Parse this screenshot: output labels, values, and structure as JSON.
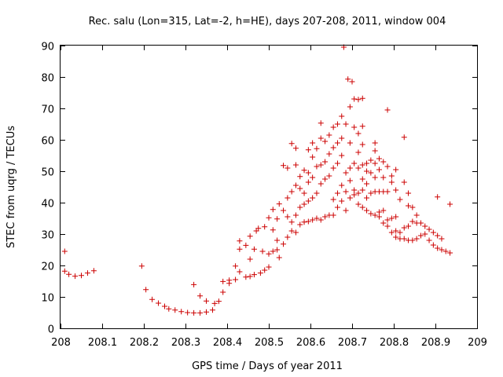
{
  "chart_data": {
    "type": "scatter",
    "title": "Rec. salu (Lon=315, Lat=-2, h=HE), days 207-208, 2011, window 004",
    "xlabel": "GPS time / Days of year 2011",
    "ylabel": "STEC from uqrg / TECUs",
    "xlim": [
      208,
      209
    ],
    "ylim": [
      0,
      90
    ],
    "xticks": [
      208,
      208.1,
      208.2,
      208.3,
      208.4,
      208.5,
      208.6,
      208.7,
      208.8,
      208.9,
      209
    ],
    "xtick_labels": [
      "208",
      "208.1",
      "208.2",
      "208.3",
      "208.4",
      "208.5",
      "208.6",
      "208.7",
      "208.8",
      "208.9",
      "209"
    ],
    "yticks": [
      0,
      10,
      20,
      30,
      40,
      50,
      60,
      70,
      80,
      90
    ],
    "ytick_labels": [
      "0",
      "10",
      "20",
      "30",
      "40",
      "50",
      "60",
      "70",
      "80",
      "90"
    ],
    "grid": false,
    "legend": "none",
    "marker": "plus",
    "color": "#cc0000",
    "series": [
      {
        "points": [
          [
            208.01,
            24.5
          ],
          [
            208.01,
            18.2
          ],
          [
            208.02,
            17.2
          ],
          [
            208.035,
            16.6
          ],
          [
            208.05,
            16.8
          ],
          [
            208.065,
            17.6
          ],
          [
            208.08,
            18.3
          ],
          [
            208.195,
            19.8
          ],
          [
            208.205,
            12.3
          ],
          [
            208.22,
            9.2
          ],
          [
            208.235,
            8.0
          ],
          [
            208.25,
            7.0
          ],
          [
            208.26,
            6.2
          ],
          [
            208.275,
            5.8
          ],
          [
            208.29,
            5.3
          ],
          [
            208.305,
            5.0
          ],
          [
            208.32,
            4.9
          ],
          [
            208.335,
            4.9
          ],
          [
            208.35,
            5.2
          ],
          [
            208.365,
            5.8
          ],
          [
            208.32,
            13.9
          ],
          [
            208.335,
            10.3
          ],
          [
            208.35,
            8.7
          ],
          [
            208.37,
            7.9
          ],
          [
            208.38,
            8.6
          ],
          [
            208.39,
            11.5
          ],
          [
            208.39,
            14.9
          ],
          [
            208.405,
            15.3
          ],
          [
            208.405,
            14.3
          ],
          [
            208.42,
            15.5
          ],
          [
            208.42,
            19.8
          ],
          [
            208.43,
            18.0
          ],
          [
            208.43,
            25.2
          ],
          [
            208.43,
            27.8
          ],
          [
            208.445,
            16.3
          ],
          [
            208.445,
            26.4
          ],
          [
            208.455,
            16.5
          ],
          [
            208.455,
            22.0
          ],
          [
            208.455,
            29.3
          ],
          [
            208.465,
            17.1
          ],
          [
            208.465,
            25.2
          ],
          [
            208.47,
            31.0
          ],
          [
            208.475,
            31.8
          ],
          [
            208.48,
            17.6
          ],
          [
            208.485,
            24.5
          ],
          [
            208.49,
            32.3
          ],
          [
            208.49,
            18.5
          ],
          [
            208.5,
            19.5
          ],
          [
            208.5,
            23.7
          ],
          [
            208.5,
            35.2
          ],
          [
            208.51,
            24.5
          ],
          [
            208.51,
            31.3
          ],
          [
            208.51,
            37.8
          ],
          [
            208.52,
            25.0
          ],
          [
            208.52,
            28.0
          ],
          [
            208.52,
            34.8
          ],
          [
            208.525,
            39.6
          ],
          [
            208.525,
            22.5
          ],
          [
            208.535,
            26.8
          ],
          [
            208.535,
            37.5
          ],
          [
            208.535,
            51.8
          ],
          [
            208.545,
            29.0
          ],
          [
            208.545,
            35.5
          ],
          [
            208.545,
            41.5
          ],
          [
            208.545,
            51.0
          ],
          [
            208.555,
            31.0
          ],
          [
            208.555,
            33.8
          ],
          [
            208.555,
            43.5
          ],
          [
            208.555,
            58.8
          ],
          [
            208.565,
            30.5
          ],
          [
            208.565,
            36.0
          ],
          [
            208.565,
            45.5
          ],
          [
            208.565,
            52.0
          ],
          [
            208.565,
            57.3
          ],
          [
            208.575,
            33.0
          ],
          [
            208.575,
            38.5
          ],
          [
            208.575,
            44.5
          ],
          [
            208.575,
            48.3
          ],
          [
            208.585,
            33.8
          ],
          [
            208.585,
            39.5
          ],
          [
            208.585,
            43.0
          ],
          [
            208.585,
            50.3
          ],
          [
            208.595,
            34.0
          ],
          [
            208.595,
            40.5
          ],
          [
            208.595,
            46.5
          ],
          [
            208.595,
            49.5
          ],
          [
            208.595,
            56.8
          ],
          [
            208.605,
            34.5
          ],
          [
            208.605,
            41.5
          ],
          [
            208.605,
            48.0
          ],
          [
            208.605,
            54.5
          ],
          [
            208.605,
            59.0
          ],
          [
            208.615,
            35.0
          ],
          [
            208.615,
            43.0
          ],
          [
            208.615,
            51.5
          ],
          [
            208.615,
            57.2
          ],
          [
            208.625,
            34.5
          ],
          [
            208.625,
            46.0
          ],
          [
            208.625,
            52.0
          ],
          [
            208.625,
            60.5
          ],
          [
            208.625,
            65.3
          ],
          [
            208.635,
            35.5
          ],
          [
            208.635,
            47.5
          ],
          [
            208.635,
            53.0
          ],
          [
            208.635,
            59.5
          ],
          [
            208.645,
            36.0
          ],
          [
            208.645,
            48.5
          ],
          [
            208.645,
            55.5
          ],
          [
            208.645,
            61.5
          ],
          [
            208.655,
            36.0
          ],
          [
            208.655,
            41.0
          ],
          [
            208.655,
            51.0
          ],
          [
            208.655,
            57.5
          ],
          [
            208.655,
            64.0
          ],
          [
            208.665,
            38.5
          ],
          [
            208.665,
            43.0
          ],
          [
            208.665,
            52.5
          ],
          [
            208.665,
            59.0
          ],
          [
            208.665,
            65.0
          ],
          [
            208.675,
            40.5
          ],
          [
            208.675,
            45.5
          ],
          [
            208.675,
            55.0
          ],
          [
            208.675,
            60.5
          ],
          [
            208.675,
            67.5
          ],
          [
            208.68,
            89.5
          ],
          [
            208.685,
            37.5
          ],
          [
            208.685,
            43.5
          ],
          [
            208.685,
            49.5
          ],
          [
            208.685,
            65.0
          ],
          [
            208.69,
            79.3
          ],
          [
            208.695,
            41.5
          ],
          [
            208.695,
            47.0
          ],
          [
            208.695,
            51.0
          ],
          [
            208.695,
            59.0
          ],
          [
            208.695,
            70.5
          ],
          [
            208.7,
            78.5
          ],
          [
            208.705,
            42.5
          ],
          [
            208.705,
            44.0
          ],
          [
            208.705,
            52.5
          ],
          [
            208.705,
            64.0
          ],
          [
            208.705,
            73.0
          ],
          [
            208.715,
            39.5
          ],
          [
            208.715,
            43.0
          ],
          [
            208.715,
            51.0
          ],
          [
            208.715,
            56.0
          ],
          [
            208.715,
            62.0
          ],
          [
            208.715,
            72.8
          ],
          [
            208.725,
            38.5
          ],
          [
            208.725,
            44.0
          ],
          [
            208.725,
            47.5
          ],
          [
            208.725,
            52.0
          ],
          [
            208.725,
            58.5
          ],
          [
            208.725,
            64.3
          ],
          [
            208.725,
            73.2
          ],
          [
            208.735,
            37.5
          ],
          [
            208.735,
            41.5
          ],
          [
            208.735,
            46.0
          ],
          [
            208.735,
            50.0
          ],
          [
            208.735,
            52.5
          ],
          [
            208.745,
            36.5
          ],
          [
            208.745,
            43.0
          ],
          [
            208.745,
            49.5
          ],
          [
            208.745,
            53.5
          ],
          [
            208.755,
            36.0
          ],
          [
            208.755,
            43.5
          ],
          [
            208.755,
            48.0
          ],
          [
            208.755,
            52.5
          ],
          [
            208.755,
            56.5
          ],
          [
            208.755,
            59.0
          ],
          [
            208.765,
            35.5
          ],
          [
            208.765,
            37.0
          ],
          [
            208.765,
            43.5
          ],
          [
            208.765,
            50.5
          ],
          [
            208.765,
            54.0
          ],
          [
            208.775,
            33.5
          ],
          [
            208.775,
            37.5
          ],
          [
            208.775,
            43.5
          ],
          [
            208.775,
            48.0
          ],
          [
            208.775,
            53.0
          ],
          [
            208.785,
            32.5
          ],
          [
            208.785,
            34.5
          ],
          [
            208.785,
            43.5
          ],
          [
            208.785,
            51.5
          ],
          [
            208.785,
            69.5
          ],
          [
            208.795,
            30.5
          ],
          [
            208.795,
            35.0
          ],
          [
            208.795,
            46.5
          ],
          [
            208.795,
            48.5
          ],
          [
            208.805,
            29.0
          ],
          [
            208.805,
            31.0
          ],
          [
            208.805,
            35.5
          ],
          [
            208.805,
            44.0
          ],
          [
            208.805,
            50.5
          ],
          [
            208.815,
            28.5
          ],
          [
            208.815,
            30.5
          ],
          [
            208.815,
            41.0
          ],
          [
            208.825,
            28.5
          ],
          [
            208.825,
            32.0
          ],
          [
            208.825,
            46.5
          ],
          [
            208.825,
            60.8
          ],
          [
            208.835,
            28.0
          ],
          [
            208.835,
            32.5
          ],
          [
            208.835,
            39.0
          ],
          [
            208.835,
            43.0
          ],
          [
            208.845,
            28.0
          ],
          [
            208.845,
            34.0
          ],
          [
            208.845,
            38.5
          ],
          [
            208.855,
            28.5
          ],
          [
            208.855,
            33.5
          ],
          [
            208.855,
            36.0
          ],
          [
            208.865,
            29.5
          ],
          [
            208.865,
            33.5
          ],
          [
            208.875,
            30.0
          ],
          [
            208.875,
            32.5
          ],
          [
            208.885,
            28.0
          ],
          [
            208.885,
            31.5
          ],
          [
            208.895,
            26.5
          ],
          [
            208.895,
            30.5
          ],
          [
            208.905,
            25.5
          ],
          [
            208.905,
            29.5
          ],
          [
            208.905,
            41.8
          ],
          [
            208.915,
            25.0
          ],
          [
            208.915,
            28.5
          ],
          [
            208.925,
            24.5
          ],
          [
            208.935,
            24.0
          ],
          [
            208.935,
            39.5
          ]
        ]
      }
    ]
  }
}
